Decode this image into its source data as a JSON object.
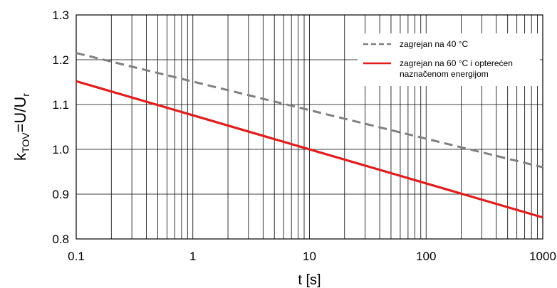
{
  "chart_data": {
    "type": "line",
    "xscale": "log",
    "xlim": [
      0.1,
      1000
    ],
    "ylim": [
      0.8,
      1.3
    ],
    "grid": true,
    "legend_position": "top-right",
    "xlabel": "t [s]",
    "ylabel": {
      "main": "k",
      "sub": "TOV",
      "mid": "=U/U",
      "sub2": "r"
    },
    "x_ticks": [
      0.1,
      1,
      10,
      100,
      1000
    ],
    "x_tick_labels": [
      "0.1",
      "1",
      "10",
      "100",
      "1000"
    ],
    "y_ticks": [
      0.8,
      0.9,
      1.0,
      1.1,
      1.2,
      1.3
    ],
    "y_tick_labels": [
      "0.8",
      "0.9",
      "1.0",
      "1.1",
      "1.2",
      "1.3"
    ],
    "series": [
      {
        "name": "zagrejan na 40 °C",
        "color": "#808080",
        "dash": "dashed",
        "x": [
          0.1,
          1000
        ],
        "y": [
          1.215,
          0.96
        ]
      },
      {
        "name": "zagrejan na 60 °C i opterećen naznačenom energijom",
        "legend_lines": [
          "zagrejan na 60 °C i opterećen",
          "naznačenom energijom"
        ],
        "color": "#e31b1b",
        "dash": "solid",
        "x": [
          0.1,
          1000
        ],
        "y": [
          1.152,
          0.848
        ]
      }
    ]
  }
}
